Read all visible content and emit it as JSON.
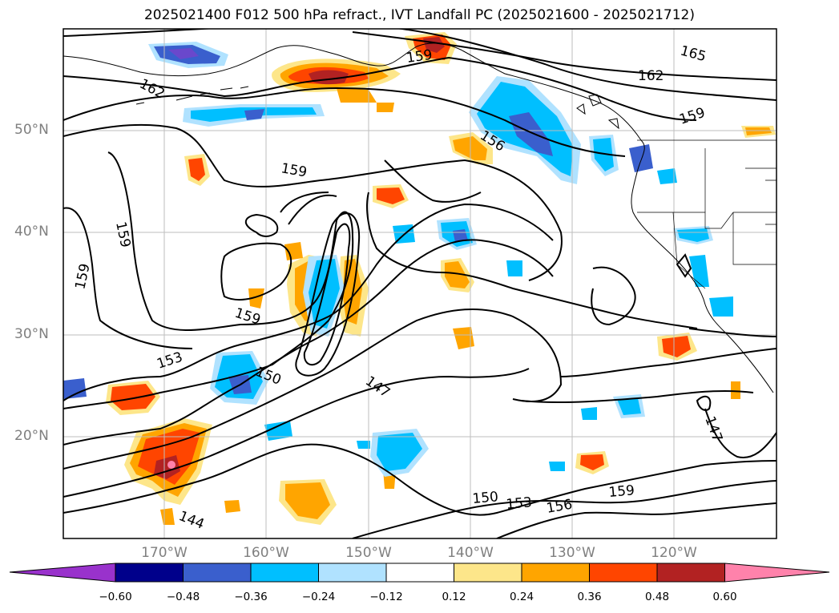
{
  "title": "2025021400 F012 500 hPa refract., IVT Landfall PC (2025021600 - 2025021712)",
  "lat_labels": [
    "50°N",
    "40°N",
    "30°N",
    "20°N"
  ],
  "lon_labels": [
    "170°W",
    "160°W",
    "150°W",
    "140°W",
    "130°W",
    "120°W"
  ],
  "contour_labels": [
    "165",
    "162",
    "162",
    "159",
    "159",
    "159",
    "159",
    "159",
    "159",
    "156",
    "156",
    "153",
    "153",
    "150",
    "150",
    "147",
    "147",
    "144",
    "159"
  ],
  "colorbar": {
    "ticks": [
      "−0.60",
      "−0.48",
      "−0.36",
      "−0.24",
      "−0.12",
      "0.12",
      "0.24",
      "0.36",
      "0.48",
      "0.60"
    ],
    "colors": [
      "#9932cc",
      "#00008b",
      "#3a5fcd",
      "#00bfff",
      "#b0e2ff",
      "#ffffff",
      "#fde68a",
      "#ffa500",
      "#ff4500",
      "#b22222",
      "#ff82ab"
    ]
  }
}
